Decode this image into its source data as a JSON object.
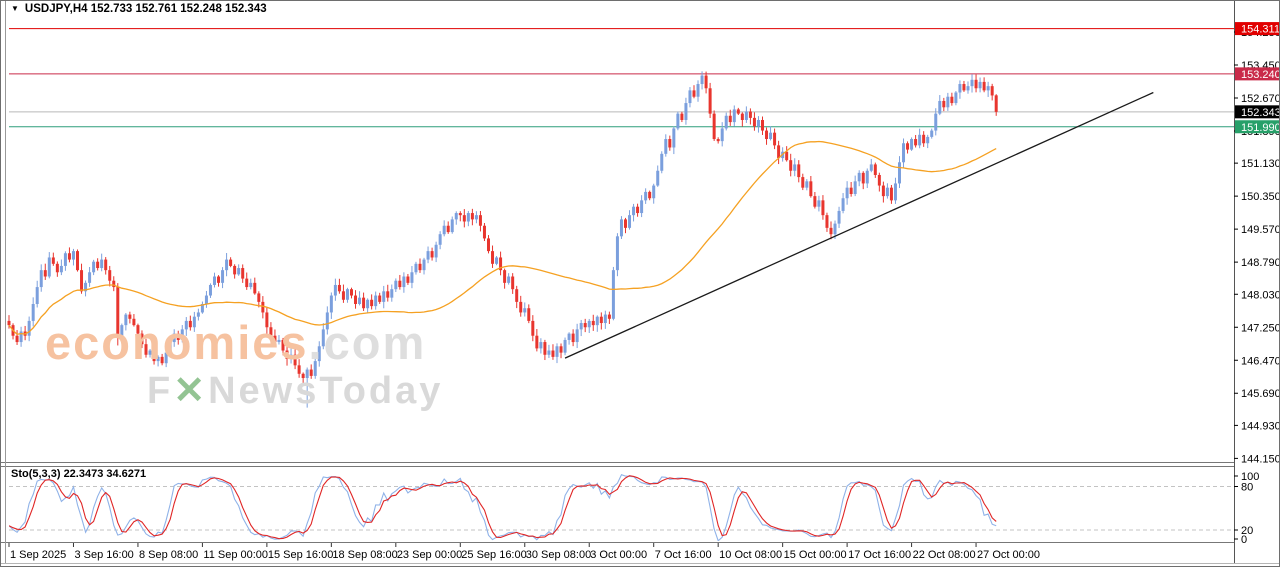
{
  "window": {
    "dropdown_arrow": "▼",
    "quote_line": "USDJPY,H4  152.733 152.761 152.248 152.343"
  },
  "watermark": {
    "line1_main": "economies",
    "line1_suffix": ".com",
    "line2_prefix": "F",
    "line2_x": "✕",
    "line2_rest": "NewsToday"
  },
  "indicator_panel": {
    "label": "Sto(5,3,3) 22.3473 34.6271",
    "name": "Sto(5,3,3)",
    "current_k": "22.3473",
    "current_d": "34.6271",
    "scale_labels": [
      "100",
      "80",
      "20",
      "0"
    ],
    "dashed_levels": [
      80,
      20
    ]
  },
  "colors": {
    "bull_candle": "#7b9fdd",
    "bear_candle": "#e8352e",
    "ma_line": "#f5a122",
    "trendline": "#1a1a1a",
    "level_red": "#e10000",
    "level_crimson": "#c92a49",
    "level_gray": "#b9b9b9",
    "level_teal": "#2e9e7c",
    "badge_red": "#e10000",
    "badge_crimson": "#c92a49",
    "badge_black": "#000000",
    "badge_green": "#27a069",
    "stoch_k": "#8fb2e8",
    "stoch_d": "#e02626",
    "dashed_gridline": "#c3c3c3",
    "axis_text": "#000000",
    "panel_border": "#6e6e6e"
  },
  "chart_data": {
    "type": "candlestick",
    "symbol": "USDJPY",
    "timeframe": "H4",
    "title": "USDJPY,H4",
    "current_ohlc": {
      "open": 152.733,
      "high": 152.761,
      "low": 152.248,
      "close": 152.343
    },
    "x_labels": [
      "1 Sep 2025",
      "3 Sep 16:00",
      "8 Sep 08:00",
      "11 Sep 00:00",
      "15 Sep 16:00",
      "18 Sep 08:00",
      "23 Sep 00:00",
      "25 Sep 16:00",
      "30 Sep 08:00",
      "3 Oct 00:00",
      "7 Oct 16:00",
      "10 Oct 08:00",
      "15 Oct 00:00",
      "17 Oct 16:00",
      "22 Oct 08:00",
      "27 Oct 00:00"
    ],
    "candles_per_label": 16,
    "y_ticks": [
      154.23,
      153.45,
      152.67,
      151.89,
      151.13,
      150.35,
      149.57,
      148.79,
      148.03,
      147.25,
      146.47,
      145.69,
      144.93,
      144.15
    ],
    "price_levels": [
      {
        "price": 154.311,
        "label": "154.311",
        "line": "level_red",
        "badge": "badge_red"
      },
      {
        "price": 153.24,
        "label": "153.240",
        "line": "level_crimson",
        "badge": "badge_crimson"
      },
      {
        "price": 152.343,
        "label": "152.343",
        "line": "level_gray",
        "badge": "badge_black"
      },
      {
        "price": 151.99,
        "label": "151.990",
        "line": "level_teal",
        "badge": "badge_green"
      }
    ],
    "trendline": {
      "index1": 138,
      "price1": 146.52,
      "index2": 284,
      "price2": 152.8
    },
    "moving_average": {
      "type": "SMA",
      "period": 45
    },
    "stochastic": {
      "k_period": 5,
      "d_period": 3,
      "slowing": 3,
      "current_k": 22.3473,
      "current_d": 34.6271,
      "levels": [
        80,
        20
      ]
    },
    "closes": [
      147.3,
      147.05,
      146.9,
      147.15,
      147.05,
      147.4,
      147.8,
      148.2,
      148.6,
      148.45,
      148.9,
      148.75,
      148.55,
      148.7,
      149.0,
      148.85,
      149.05,
      148.6,
      148.1,
      148.3,
      148.55,
      148.8,
      148.65,
      148.85,
      148.6,
      148.35,
      148.2,
      147.05,
      147.3,
      147.55,
      147.45,
      147.3,
      147.1,
      146.85,
      146.6,
      146.7,
      146.45,
      146.55,
      146.4,
      146.65,
      146.9,
      147.1,
      146.95,
      147.2,
      147.4,
      147.25,
      147.5,
      147.6,
      147.8,
      148.0,
      148.25,
      148.45,
      148.3,
      148.6,
      148.85,
      148.7,
      148.5,
      148.65,
      148.4,
      148.2,
      148.3,
      148.05,
      147.85,
      147.6,
      147.25,
      147.05,
      146.9,
      146.95,
      146.7,
      146.5,
      146.6,
      146.35,
      146.15,
      146.05,
      146.25,
      146.1,
      146.45,
      146.8,
      147.2,
      147.6,
      148.0,
      148.25,
      148.1,
      147.9,
      148.15,
      148.0,
      147.8,
      147.95,
      147.7,
      147.9,
      147.75,
      148.0,
      147.85,
      148.1,
      147.95,
      148.15,
      148.35,
      148.2,
      148.45,
      148.3,
      148.55,
      148.75,
      148.6,
      148.85,
      149.05,
      148.9,
      149.2,
      149.45,
      149.65,
      149.5,
      149.8,
      149.95,
      149.9,
      149.75,
      149.95,
      149.8,
      149.9,
      149.65,
      149.35,
      149.05,
      148.75,
      148.9,
      148.6,
      148.3,
      148.45,
      148.15,
      147.85,
      147.6,
      147.7,
      147.4,
      147.05,
      146.75,
      146.9,
      146.6,
      146.7,
      146.55,
      146.8,
      146.65,
      146.95,
      147.1,
      146.9,
      147.2,
      147.35,
      147.25,
      147.4,
      147.3,
      147.5,
      147.35,
      147.55,
      147.45,
      148.6,
      149.4,
      149.8,
      149.6,
      149.9,
      150.1,
      149.95,
      150.25,
      150.45,
      150.3,
      150.6,
      150.95,
      151.35,
      151.7,
      151.5,
      151.95,
      152.3,
      152.15,
      152.55,
      152.85,
      152.7,
      153.0,
      153.2,
      152.9,
      152.3,
      151.7,
      151.65,
      151.95,
      152.25,
      152.1,
      152.4,
      152.3,
      152.15,
      152.35,
      152.2,
      152.0,
      152.15,
      151.9,
      151.7,
      151.85,
      151.55,
      151.25,
      151.4,
      151.2,
      150.95,
      151.1,
      150.8,
      150.55,
      150.7,
      150.35,
      150.1,
      150.25,
      149.9,
      149.6,
      149.45,
      149.7,
      150.0,
      150.3,
      150.55,
      150.4,
      150.7,
      150.9,
      150.65,
      150.95,
      151.1,
      150.85,
      150.6,
      150.35,
      150.55,
      150.25,
      150.65,
      151.15,
      151.6,
      151.45,
      151.7,
      151.55,
      151.8,
      151.6,
      151.75,
      151.9,
      152.3,
      152.6,
      152.45,
      152.7,
      152.55,
      152.8,
      153.0,
      152.85,
      152.95,
      153.1,
      152.9,
      153.05,
      152.85,
      152.95,
      152.73,
      152.343
    ],
    "wick_overrides": {
      "27": {
        "low": 146.82
      },
      "74": {
        "low": 145.35
      },
      "135": {
        "low": 146.48
      },
      "204": {
        "low": 149.33
      },
      "172": {
        "high": 153.3
      },
      "239": {
        "high": 153.23
      }
    }
  }
}
